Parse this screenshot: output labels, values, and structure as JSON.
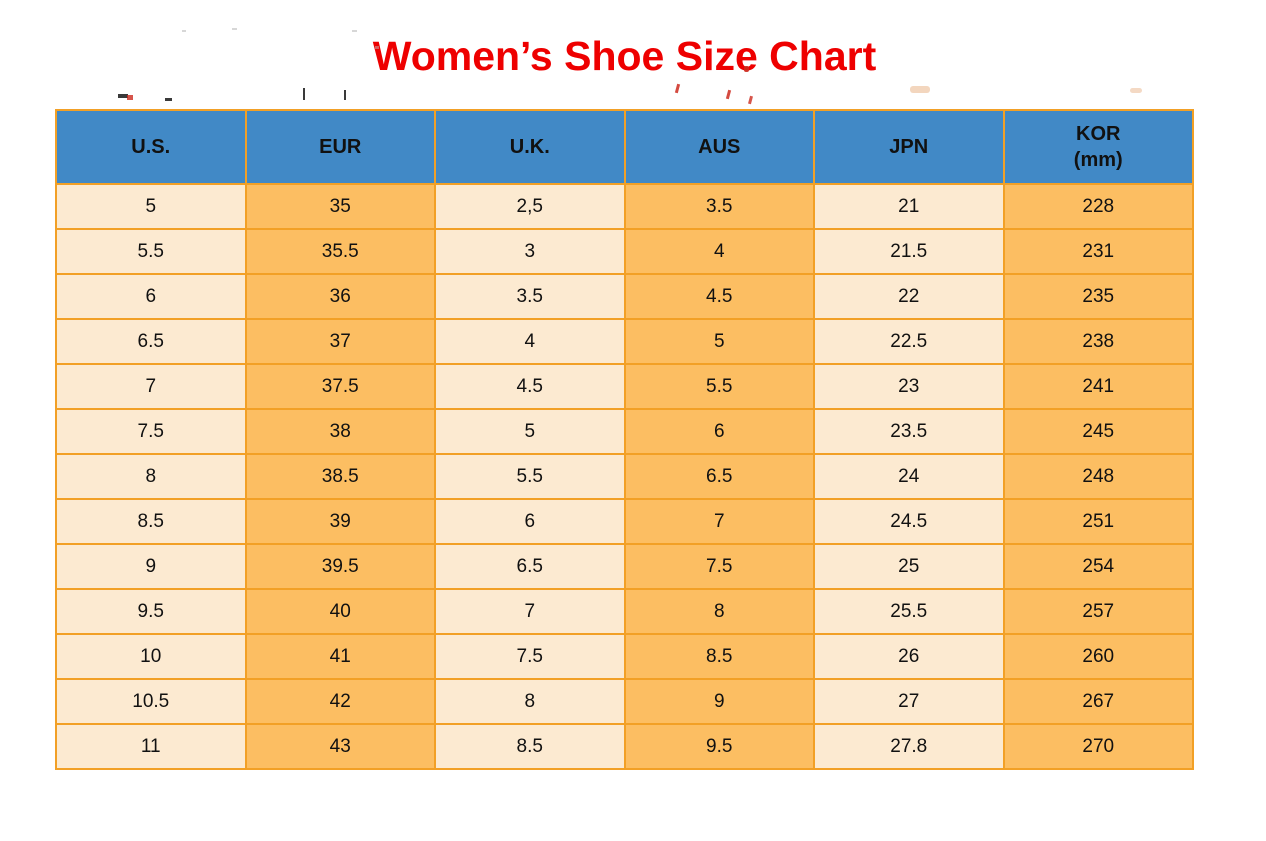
{
  "title": {
    "text": "Women’s Shoe Size Chart",
    "color": "#ee0000"
  },
  "table": {
    "colors": {
      "header_bg": "#4189c6",
      "border": "#f2a026",
      "cell_cream": "#fcead1",
      "cell_orange": "#fcbe62",
      "header_text": "#111111",
      "cell_text": "#111111"
    },
    "columns": [
      {
        "key": "us",
        "label": "U.S.",
        "shade": "cream"
      },
      {
        "key": "eur",
        "label": "EUR",
        "shade": "orange"
      },
      {
        "key": "uk",
        "label": "U.K.",
        "shade": "cream"
      },
      {
        "key": "aus",
        "label": "AUS",
        "shade": "orange"
      },
      {
        "key": "jpn",
        "label": "JPN",
        "shade": "cream"
      },
      {
        "key": "kor",
        "label": "KOR",
        "label_line2": "(mm)",
        "shade": "orange"
      }
    ],
    "rows": [
      [
        "5",
        "35",
        "2,5",
        "3.5",
        "21",
        "228"
      ],
      [
        "5.5",
        "35.5",
        "3",
        "4",
        "21.5",
        "231"
      ],
      [
        "6",
        "36",
        "3.5",
        "4.5",
        "22",
        "235"
      ],
      [
        "6.5",
        "37",
        "4",
        "5",
        "22.5",
        "238"
      ],
      [
        "7",
        "37.5",
        "4.5",
        "5.5",
        "23",
        "241"
      ],
      [
        "7.5",
        "38",
        "5",
        "6",
        "23.5",
        "245"
      ],
      [
        "8",
        "38.5",
        "5.5",
        "6.5",
        "24",
        "248"
      ],
      [
        "8.5",
        "39",
        "6",
        "7",
        "24.5",
        "251"
      ],
      [
        "9",
        "39.5",
        "6.5",
        "7.5",
        "25",
        "254"
      ],
      [
        "9.5",
        "40",
        "7",
        "8",
        "25.5",
        "257"
      ],
      [
        "10",
        "41",
        "7.5",
        "8.5",
        "26",
        "260"
      ],
      [
        "10.5",
        "42",
        "8",
        "9",
        "27",
        "267"
      ],
      [
        "11",
        "43",
        "8.5",
        "9.5",
        "27.8",
        "270"
      ]
    ]
  },
  "chart_data": {
    "type": "table",
    "title": "Women’s Shoe Size Chart",
    "columns": [
      "U.S.",
      "EUR",
      "U.K.",
      "AUS",
      "JPN",
      "KOR (mm)"
    ],
    "rows": [
      [
        "5",
        "35",
        "2,5",
        "3.5",
        "21",
        "228"
      ],
      [
        "5.5",
        "35.5",
        "3",
        "4",
        "21.5",
        "231"
      ],
      [
        "6",
        "36",
        "3.5",
        "4.5",
        "22",
        "235"
      ],
      [
        "6.5",
        "37",
        "4",
        "5",
        "22.5",
        "238"
      ],
      [
        "7",
        "37.5",
        "4.5",
        "5.5",
        "23",
        "241"
      ],
      [
        "7.5",
        "38",
        "5",
        "6",
        "23.5",
        "245"
      ],
      [
        "8",
        "38.5",
        "5.5",
        "6.5",
        "24",
        "248"
      ],
      [
        "8.5",
        "39",
        "6",
        "7",
        "24.5",
        "251"
      ],
      [
        "9",
        "39.5",
        "6.5",
        "7.5",
        "25",
        "254"
      ],
      [
        "9.5",
        "40",
        "7",
        "8",
        "25.5",
        "257"
      ],
      [
        "10",
        "41",
        "7.5",
        "8.5",
        "26",
        "260"
      ],
      [
        "10.5",
        "42",
        "8",
        "9",
        "27",
        "267"
      ],
      [
        "11",
        "43",
        "8.5",
        "9.5",
        "27.8",
        "270"
      ]
    ],
    "layout": {
      "header_background": "#4189c6",
      "column_shading_alternates": true,
      "grid": true
    }
  }
}
